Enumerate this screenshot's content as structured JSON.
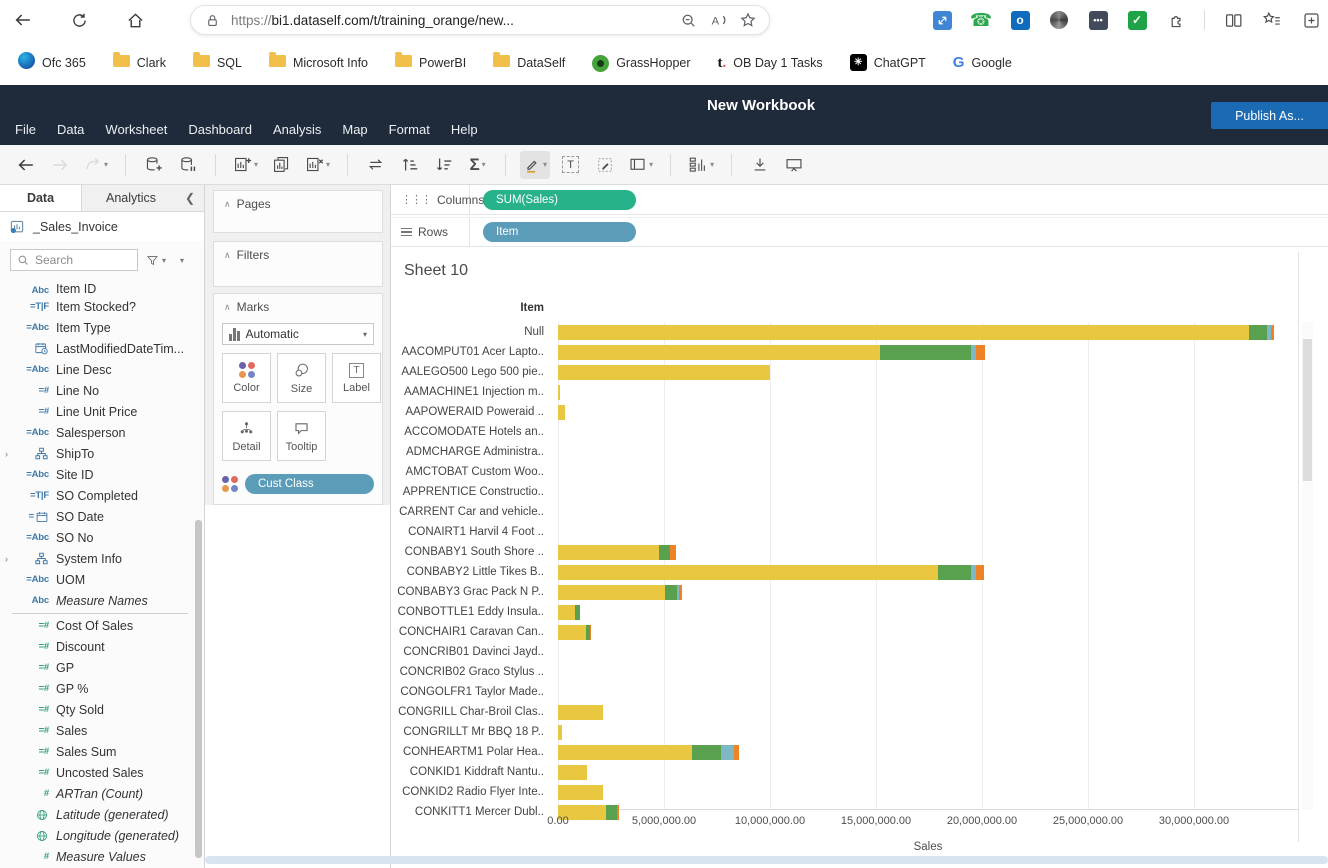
{
  "browser": {
    "url_scheme": "https://",
    "url": "bi1.dataself.com/t/training_orange/new...",
    "nav_icons": [
      "back",
      "refresh",
      "home"
    ],
    "urlbar_icons": [
      "lock",
      "zoom-out",
      "read-aloud",
      "favorite-star"
    ],
    "extensions": [
      "screenshare",
      "phone",
      "outlook",
      "shutter",
      "more",
      "check",
      "extensions-puzzle"
    ],
    "chrome_buttons": [
      "split-screen",
      "favorites-list",
      "collections"
    ],
    "bookmarks": [
      {
        "label": "Ofc 365",
        "icon": "office"
      },
      {
        "label": "Clark",
        "icon": "folder"
      },
      {
        "label": "SQL",
        "icon": "folder"
      },
      {
        "label": "Microsoft Info",
        "icon": "folder"
      },
      {
        "label": "PowerBI",
        "icon": "folder"
      },
      {
        "label": "DataSelf",
        "icon": "folder"
      },
      {
        "label": "GrassHopper",
        "icon": "grasshopper"
      },
      {
        "label": "OB Day 1 Tasks",
        "icon": "ticktick"
      },
      {
        "label": "ChatGPT",
        "icon": "chatgpt"
      },
      {
        "label": "Google",
        "icon": "google"
      }
    ]
  },
  "app": {
    "menus": [
      "File",
      "Data",
      "Worksheet",
      "Dashboard",
      "Analysis",
      "Map",
      "Format",
      "Help"
    ],
    "title": "New Workbook",
    "publish_label": "Publish As...",
    "toolbar": [
      {
        "name": "back"
      },
      {
        "name": "forward",
        "disabled": true
      },
      {
        "name": "redo",
        "disabled": true,
        "caret": true
      },
      {
        "sep": true
      },
      {
        "name": "new-datasource"
      },
      {
        "name": "pause-datasource"
      },
      {
        "sep": true
      },
      {
        "name": "new-worksheet",
        "caret": true
      },
      {
        "name": "duplicate-sheet"
      },
      {
        "name": "clear-sheet",
        "caret": true
      },
      {
        "sep": true
      },
      {
        "name": "swap-rows-columns"
      },
      {
        "name": "sort-ascending"
      },
      {
        "name": "sort-descending"
      },
      {
        "name": "totals",
        "caret": true
      },
      {
        "sep": true
      },
      {
        "name": "highlight",
        "active": true,
        "caret": true
      },
      {
        "name": "text-label"
      },
      {
        "name": "format"
      },
      {
        "name": "cell-size",
        "caret": true
      },
      {
        "sep": true
      },
      {
        "name": "show-me",
        "caret": true
      },
      {
        "sep": true
      },
      {
        "name": "download"
      },
      {
        "name": "presentation"
      }
    ]
  },
  "data_pane": {
    "tabs": [
      "Data",
      "Analytics"
    ],
    "datasource": "_Sales_Invoice",
    "search_placeholder": "Search",
    "fields": [
      {
        "icon": "abc",
        "label": "Item ID",
        "color": "blue",
        "clipped": true
      },
      {
        "icon": "tf",
        "calc": true,
        "label": "Item Stocked?",
        "color": "blue"
      },
      {
        "icon": "abc",
        "calc": true,
        "label": "Item Type",
        "color": "blue"
      },
      {
        "icon": "calclock",
        "label": "LastModifiedDateTim...",
        "color": "blue"
      },
      {
        "icon": "abc",
        "calc": true,
        "label": "Line Desc",
        "color": "blue"
      },
      {
        "icon": "num",
        "calc": true,
        "label": "Line No",
        "color": "blue"
      },
      {
        "icon": "num",
        "calc": true,
        "label": "Line Unit Price",
        "color": "blue"
      },
      {
        "icon": "abc",
        "calc": true,
        "label": "Salesperson",
        "color": "blue"
      },
      {
        "icon": "hier",
        "expand": true,
        "label": "ShipTo",
        "color": "blue"
      },
      {
        "icon": "abc",
        "calc": true,
        "label": "Site ID",
        "color": "blue"
      },
      {
        "icon": "tf",
        "calc": true,
        "label": "SO Completed",
        "color": "blue"
      },
      {
        "icon": "cal",
        "calc": true,
        "label": "SO Date",
        "color": "blue"
      },
      {
        "icon": "abc",
        "calc": true,
        "label": "SO No",
        "color": "blue"
      },
      {
        "icon": "hier",
        "expand": true,
        "label": "System Info",
        "color": "blue"
      },
      {
        "icon": "abc",
        "calc": true,
        "label": "UOM",
        "color": "blue"
      },
      {
        "icon": "abc",
        "label": "Measure Names",
        "color": "blue",
        "italic": true,
        "divider_after": true
      },
      {
        "icon": "num",
        "calc": true,
        "label": "Cost Of Sales",
        "color": "green"
      },
      {
        "icon": "num",
        "calc": true,
        "label": "Discount",
        "color": "green"
      },
      {
        "icon": "num",
        "calc": true,
        "label": "GP",
        "color": "green"
      },
      {
        "icon": "num",
        "calc": true,
        "label": "GP %",
        "color": "green"
      },
      {
        "icon": "num",
        "calc": true,
        "label": "Qty Sold",
        "color": "green"
      },
      {
        "icon": "num",
        "calc": true,
        "label": "Sales",
        "color": "green"
      },
      {
        "icon": "num",
        "calc": true,
        "label": "Sales Sum",
        "color": "green"
      },
      {
        "icon": "num",
        "calc": true,
        "label": "Uncosted Sales",
        "color": "green"
      },
      {
        "icon": "num",
        "label": "ARTran (Count)",
        "color": "green",
        "italic": true
      },
      {
        "icon": "globe",
        "label": "Latitude (generated)",
        "color": "green",
        "italic": true
      },
      {
        "icon": "globe",
        "label": "Longitude (generated)",
        "color": "green",
        "italic": true
      },
      {
        "icon": "num",
        "label": "Measure Values",
        "color": "green",
        "italic": true
      }
    ]
  },
  "cards": {
    "pages_label": "Pages",
    "filters_label": "Filters",
    "marks_label": "Marks",
    "mark_type": "Automatic",
    "buttons": [
      {
        "label": "Color",
        "icon": "color"
      },
      {
        "label": "Size",
        "icon": "size"
      },
      {
        "label": "Label",
        "icon": "label"
      },
      {
        "label": "Detail",
        "icon": "detail"
      },
      {
        "label": "Tooltip",
        "icon": "tooltip"
      }
    ],
    "color_pill": "Cust Class"
  },
  "shelves": {
    "columns_label": "Columns",
    "rows_label": "Rows",
    "columns_pill": "SUM(Sales)",
    "rows_pill": "Item"
  },
  "sheet": {
    "title": "Sheet 10"
  },
  "chart_data": {
    "type": "bar",
    "orientation": "horizontal",
    "stacked": true,
    "title": "Sheet 10",
    "row_header": "Item",
    "xlabel": "Sales",
    "x_tick_labels": [
      "0.00",
      "5,000,000.00",
      "10,000,000.00",
      "15,000,000.00",
      "20,000,000.00",
      "25,000,000.00",
      "30,000,000.00"
    ],
    "x_tick_values": [
      0,
      5000000,
      10000000,
      15000000,
      20000000,
      25000000,
      30000000
    ],
    "x_max": 34900000,
    "grid": true,
    "legend_field": "Cust Class",
    "segment_names": [
      "yellow",
      "green",
      "teal",
      "orange"
    ],
    "segment_colors": [
      "#E9C740",
      "#59A14F",
      "#7DB8C4",
      "#EE8227"
    ],
    "rows": [
      {
        "label": "Null",
        "values": [
          32600000,
          850000,
          200000,
          120000
        ]
      },
      {
        "label": "AACOMPUT01  Acer Lapto..",
        "values": [
          15200000,
          4300000,
          200000,
          450000
        ]
      },
      {
        "label": "AALEGO500  Lego 500 pie..",
        "values": [
          10000000,
          0,
          0,
          0
        ]
      },
      {
        "label": "AAMACHINE1  Injection m..",
        "values": [
          100000,
          0,
          0,
          0
        ]
      },
      {
        "label": "AAPOWERAID  Poweraid ..",
        "values": [
          350000,
          0,
          0,
          0
        ]
      },
      {
        "label": "ACCOMODATE  Hotels an..",
        "values": [
          0,
          0,
          0,
          0
        ]
      },
      {
        "label": "ADMCHARGE  Administra..",
        "values": [
          0,
          0,
          0,
          0
        ]
      },
      {
        "label": "AMCTOBAT  Custom Woo..",
        "values": [
          0,
          0,
          0,
          0
        ]
      },
      {
        "label": "APPRENTICE  Constructio..",
        "values": [
          0,
          0,
          0,
          0
        ]
      },
      {
        "label": "CARRENT  Car and vehicle..",
        "values": [
          0,
          0,
          0,
          0
        ]
      },
      {
        "label": "CONAIRT1  Harvil 4 Foot ..",
        "values": [
          0,
          0,
          0,
          0
        ]
      },
      {
        "label": "CONBABY1  South Shore ..",
        "values": [
          4750000,
          550000,
          0,
          250000
        ]
      },
      {
        "label": "CONBABY2  Little Tikes B..",
        "values": [
          17900000,
          1600000,
          200000,
          400000
        ]
      },
      {
        "label": "CONBABY3  Grac Pack N P..",
        "values": [
          5050000,
          550000,
          100000,
          150000
        ]
      },
      {
        "label": "CONBOTTLE1  Eddy Insula..",
        "values": [
          800000,
          250000,
          0,
          0
        ]
      },
      {
        "label": "CONCHAIR1  Caravan Can..",
        "values": [
          1300000,
          200000,
          0,
          80000
        ]
      },
      {
        "label": "CONCRIB01  Davinci Jayd..",
        "values": [
          0,
          0,
          0,
          0
        ]
      },
      {
        "label": "CONCRIB02  Graco Stylus ..",
        "values": [
          0,
          0,
          0,
          0
        ]
      },
      {
        "label": "CONGOLFR1  Taylor Made..",
        "values": [
          0,
          0,
          0,
          0
        ]
      },
      {
        "label": "CONGRILL  Char-Broil Clas..",
        "values": [
          2100000,
          0,
          0,
          0
        ]
      },
      {
        "label": "CONGRILLT  Mr BBQ 18 P..",
        "values": [
          200000,
          0,
          0,
          0
        ]
      },
      {
        "label": "CONHEARTM1  Polar Hea..",
        "values": [
          6300000,
          1400000,
          600000,
          250000
        ]
      },
      {
        "label": "CONKID1  Kiddraft Nantu..",
        "values": [
          1350000,
          0,
          0,
          0
        ]
      },
      {
        "label": "CONKID2  Radio Flyer Inte..",
        "values": [
          2100000,
          0,
          0,
          0
        ]
      },
      {
        "label": "CONKITT1  Mercer Dubl..",
        "values": [
          2250000,
          550000,
          0,
          80000
        ],
        "clipped": true
      }
    ]
  }
}
